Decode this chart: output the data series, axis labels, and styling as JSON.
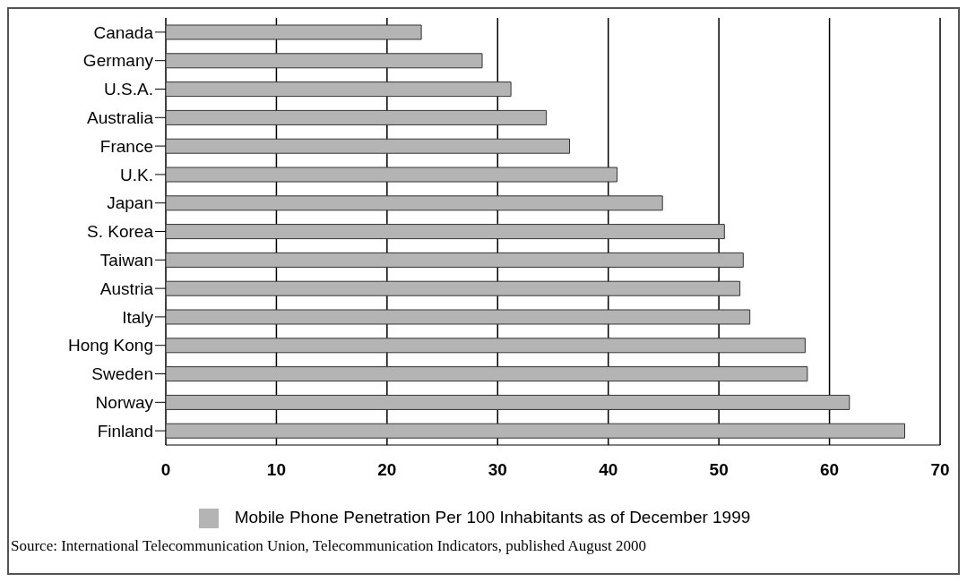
{
  "chart_data": {
    "type": "bar",
    "orientation": "horizontal",
    "categories": [
      "Canada",
      "Germany",
      "U.S.A.",
      "Australia",
      "France",
      "U.K.",
      "Japan",
      "S. Korea",
      "Taiwan",
      "Austria",
      "Italy",
      "Hong Kong",
      "Sweden",
      "Norway",
      "Finland"
    ],
    "series": [
      {
        "name": "Mobile Phone Penetration Per 100 Inhabitants as of December 1999",
        "color": "#b4b4b4",
        "values": [
          23.1,
          28.6,
          31.2,
          34.4,
          36.5,
          40.8,
          44.9,
          50.5,
          52.2,
          51.9,
          52.8,
          57.8,
          58.0,
          61.8,
          66.8
        ]
      }
    ],
    "xlim": [
      0,
      70
    ],
    "xticks": [
      0,
      10,
      20,
      30,
      40,
      50,
      60,
      70
    ],
    "grid": "x",
    "legend": "bottom",
    "annotations": [
      "Source: International Telecommunication Union, Telecommunication Indicators, published August 2000"
    ]
  }
}
